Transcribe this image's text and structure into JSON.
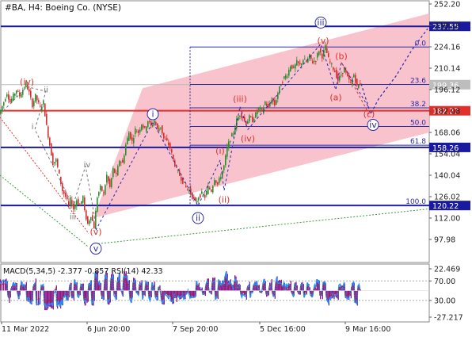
{
  "header": {
    "title": "#BA, H4:  Boeing Co. (NYSE)"
  },
  "chart_data": {
    "type": "candlestick",
    "symbol": "#BA",
    "timeframe": "H4",
    "instrument": "Boeing Co. (NYSE)",
    "price_ticks": [
      "252.20",
      "238.10",
      "224.16",
      "210.14",
      "196.12",
      "182.08",
      "168.06",
      "154.04",
      "140.04",
      "126.02",
      "112.00",
      "97.98"
    ],
    "time_ticks": [
      "11 Mar 2022",
      "6 Jun 20:00",
      "7 Sep 20:00",
      "5 Dec 16:00",
      "9 Mar 16:00"
    ],
    "ylim": [
      85,
      252.2
    ],
    "horizontal_levels": [
      {
        "price": 237.55,
        "label": "237.55",
        "color": "#1a1aa0",
        "badge_color": "#1a1aa0"
      },
      {
        "price": 182.27,
        "label": "182.27",
        "color": "#e0302a",
        "badge_color": "#e0302a"
      },
      {
        "price": 158.26,
        "label": "158.26",
        "color": "#1a1aa0",
        "badge_color": "#1a1aa0"
      },
      {
        "price": 120.22,
        "label": "120.22",
        "color": "#1a1aa0",
        "badge_color": "#1a1aa0"
      }
    ],
    "current_price": {
      "price": 199.36,
      "label": "199.36",
      "badge_color": "#bdbdbd"
    },
    "fib_levels": [
      {
        "ratio": "0.0",
        "price": 224.0
      },
      {
        "ratio": "23.6",
        "price": 199.5
      },
      {
        "ratio": "38.2",
        "price": 184.2
      },
      {
        "ratio": "50.0",
        "price": 172.0
      },
      {
        "ratio": "61.8",
        "price": 159.7
      },
      {
        "ratio": "100.0",
        "price": 120.2
      }
    ],
    "price_path": [
      [
        0,
        180
      ],
      [
        6,
        188
      ],
      [
        10,
        194
      ],
      [
        14,
        188
      ],
      [
        18,
        192
      ],
      [
        22,
        196
      ],
      [
        26,
        192
      ],
      [
        30,
        196
      ],
      [
        34,
        200
      ],
      [
        38,
        194
      ],
      [
        42,
        186
      ],
      [
        46,
        192
      ],
      [
        52,
        184
      ],
      [
        56,
        188
      ],
      [
        60,
        172
      ],
      [
        64,
        160
      ],
      [
        68,
        148
      ],
      [
        72,
        150
      ],
      [
        76,
        140
      ],
      [
        80,
        130
      ],
      [
        84,
        126
      ],
      [
        88,
        120
      ],
      [
        90,
        124
      ],
      [
        94,
        118
      ],
      [
        98,
        124
      ],
      [
        102,
        120
      ],
      [
        106,
        126
      ],
      [
        108,
        116
      ],
      [
        112,
        108
      ],
      [
        116,
        114
      ],
      [
        120,
        106
      ],
      [
        124,
        126
      ],
      [
        128,
        132
      ],
      [
        132,
        128
      ],
      [
        136,
        140
      ],
      [
        140,
        132
      ],
      [
        144,
        144
      ],
      [
        148,
        140
      ],
      [
        152,
        150
      ],
      [
        156,
        148
      ],
      [
        160,
        160
      ],
      [
        164,
        168
      ],
      [
        168,
        162
      ],
      [
        172,
        170
      ],
      [
        176,
        168
      ],
      [
        180,
        174
      ],
      [
        184,
        170
      ],
      [
        188,
        176
      ],
      [
        192,
        172
      ],
      [
        196,
        176
      ],
      [
        200,
        170
      ],
      [
        204,
        172
      ],
      [
        208,
        164
      ],
      [
        212,
        162
      ],
      [
        216,
        158
      ],
      [
        220,
        150
      ],
      [
        224,
        144
      ],
      [
        228,
        140
      ],
      [
        232,
        136
      ],
      [
        236,
        132
      ],
      [
        240,
        130
      ],
      [
        244,
        126
      ],
      [
        248,
        122
      ],
      [
        252,
        126
      ],
      [
        256,
        128
      ],
      [
        260,
        126
      ],
      [
        264,
        132
      ],
      [
        268,
        130
      ],
      [
        272,
        138
      ],
      [
        276,
        134
      ],
      [
        280,
        140
      ],
      [
        284,
        146
      ],
      [
        288,
        158
      ],
      [
        292,
        164
      ],
      [
        296,
        168
      ],
      [
        300,
        176
      ],
      [
        304,
        180
      ],
      [
        308,
        178
      ],
      [
        312,
        174
      ],
      [
        316,
        178
      ],
      [
        320,
        176
      ],
      [
        324,
        180
      ],
      [
        328,
        184
      ],
      [
        332,
        182
      ],
      [
        336,
        188
      ],
      [
        340,
        184
      ],
      [
        344,
        190
      ],
      [
        348,
        186
      ],
      [
        352,
        194
      ],
      [
        356,
        200
      ],
      [
        360,
        204
      ],
      [
        364,
        206
      ],
      [
        368,
        212
      ],
      [
        372,
        210
      ],
      [
        376,
        214
      ],
      [
        380,
        212
      ],
      [
        384,
        216
      ],
      [
        388,
        214
      ],
      [
        392,
        218
      ],
      [
        396,
        214
      ],
      [
        400,
        216
      ],
      [
        404,
        222
      ],
      [
        408,
        218
      ],
      [
        412,
        224
      ],
      [
        416,
        216
      ],
      [
        420,
        212
      ],
      [
        424,
        208
      ],
      [
        428,
        202
      ],
      [
        432,
        206
      ],
      [
        436,
        210
      ],
      [
        440,
        204
      ],
      [
        444,
        200
      ],
      [
        448,
        206
      ],
      [
        452,
        198
      ],
      [
        456,
        200
      ]
    ],
    "projection": [
      [
        456,
        200
      ],
      [
        468,
        180
      ],
      [
        478,
        190
      ],
      [
        500,
        205
      ],
      [
        520,
        222
      ],
      [
        540,
        236
      ]
    ],
    "channel": {
      "upper": [
        [
          180,
          197
        ],
        [
          542,
          246
        ]
      ],
      "lower": [
        [
          118,
          112
        ],
        [
          542,
          168
        ]
      ]
    },
    "support_line": [
      [
        120,
        95
      ],
      [
        542,
        118
      ]
    ],
    "wave_labels": [
      {
        "text": "(iv)",
        "x": 34,
        "price": 201,
        "color": "red"
      },
      {
        "text": "ii",
        "x": 58,
        "price": 196,
        "color": "gray"
      },
      {
        "text": "i",
        "x": 41,
        "price": 172,
        "color": "gray"
      },
      {
        "text": "iii",
        "x": 92,
        "price": 113,
        "color": "gray"
      },
      {
        "text": "iv",
        "x": 110,
        "price": 147,
        "color": "gray"
      },
      {
        "text": "(v)",
        "x": 121,
        "price": 103,
        "color": "red"
      },
      {
        "text": "v",
        "x": 121,
        "price": 92,
        "color": "blue-circle"
      },
      {
        "text": "i",
        "x": 193,
        "price": 180,
        "color": "blue-circle"
      },
      {
        "text": "ii",
        "x": 250,
        "price": 112,
        "color": "blue-circle"
      },
      {
        "text": "(i)",
        "x": 278,
        "price": 156,
        "color": "red"
      },
      {
        "text": "(ii)",
        "x": 283,
        "price": 124,
        "color": "red"
      },
      {
        "text": "(iii)",
        "x": 303,
        "price": 190,
        "color": "red"
      },
      {
        "text": "(iv)",
        "x": 313,
        "price": 164,
        "color": "red"
      },
      {
        "text": "iii",
        "x": 405,
        "price": 240,
        "color": "blue-circle"
      },
      {
        "text": "(v)",
        "x": 408,
        "price": 228,
        "color": "red"
      },
      {
        "text": "(b)",
        "x": 431,
        "price": 218,
        "color": "red"
      },
      {
        "text": "(a)",
        "x": 424,
        "price": 191,
        "color": "red"
      },
      {
        "text": "(c)",
        "x": 466,
        "price": 180,
        "color": "red"
      },
      {
        "text": "iv",
        "x": 471,
        "price": 173,
        "color": "blue-circle"
      }
    ]
  },
  "indicator": {
    "label": "MACD(5,34,5) -2.377 -0.857 RSI(14) 42.33",
    "ticks": [
      "22.469",
      "70.00",
      "30.00",
      "-27.217"
    ],
    "colors": {
      "histogram": "#8b1a8b",
      "rsi": "#1e90ff",
      "signal": "#c01818"
    }
  },
  "colors": {
    "channel_fill": "#f7b8c4",
    "bull_candle": "#2e8b2e",
    "bear_candle": "#d03030",
    "wave_path": "#e0302a",
    "blue_line": "#1a1aa0"
  }
}
